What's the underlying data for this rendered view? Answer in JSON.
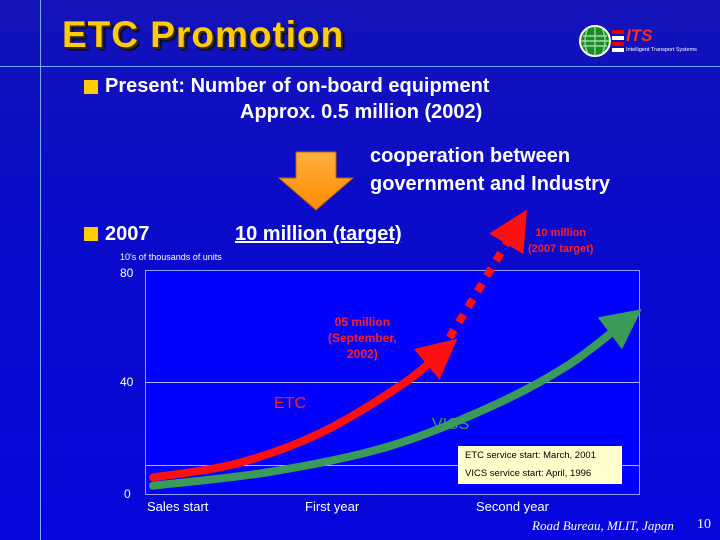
{
  "slide": {
    "title": "ETC Promotion",
    "logo_text": "ITS",
    "logo_subtext": "Intelligent Transport Systems",
    "present_line1": "Present: Number of on-board equipment",
    "present_line2": "Approx. 0.5 million (2002)",
    "coop_line1": "cooperation between",
    "coop_line2": "government and Industry",
    "year_2007": "2007",
    "target_text": "10 million (target)",
    "footer": "Road Bureau, MLIT, Japan",
    "page_number": "10",
    "colors": {
      "title": "#ffcc00",
      "etc": "#ff1010",
      "vics": "#3a9a5a",
      "background": "#0a0ad0",
      "plot": "#0000ff"
    }
  },
  "chart_data": {
    "type": "line",
    "unit_label": "10's of thousands of units",
    "ylim": [
      0,
      80
    ],
    "yticks": [
      "0",
      "40",
      "80"
    ],
    "xticks": [
      "Sales start",
      "First year",
      "Second year"
    ],
    "grid": true,
    "series": [
      {
        "name": "ETC",
        "points": [
          [
            0,
            6
          ],
          [
            0.5,
            11
          ],
          [
            1.0,
            22
          ],
          [
            1.5,
            40
          ],
          [
            1.72,
            51
          ]
        ]
      },
      {
        "name": "ETC target",
        "style": "dotted",
        "points": [
          [
            1.72,
            51
          ],
          [
            2.17,
            96
          ]
        ]
      },
      {
        "name": "VICS",
        "points": [
          [
            0,
            3
          ],
          [
            0.7,
            8
          ],
          [
            1.4,
            17
          ],
          [
            2.0,
            31
          ],
          [
            2.47,
            46
          ],
          [
            2.82,
            62
          ]
        ]
      }
    ],
    "annotations": {
      "etc_now_l1": "05 million",
      "etc_now_l2": "(September,",
      "etc_now_l3": "2002)",
      "target_l1": "10 million",
      "target_l2": "(2007 target)",
      "etc_service": "ETC service start: March, 2001",
      "vics_service": "VICS service start: April, 1996"
    }
  }
}
